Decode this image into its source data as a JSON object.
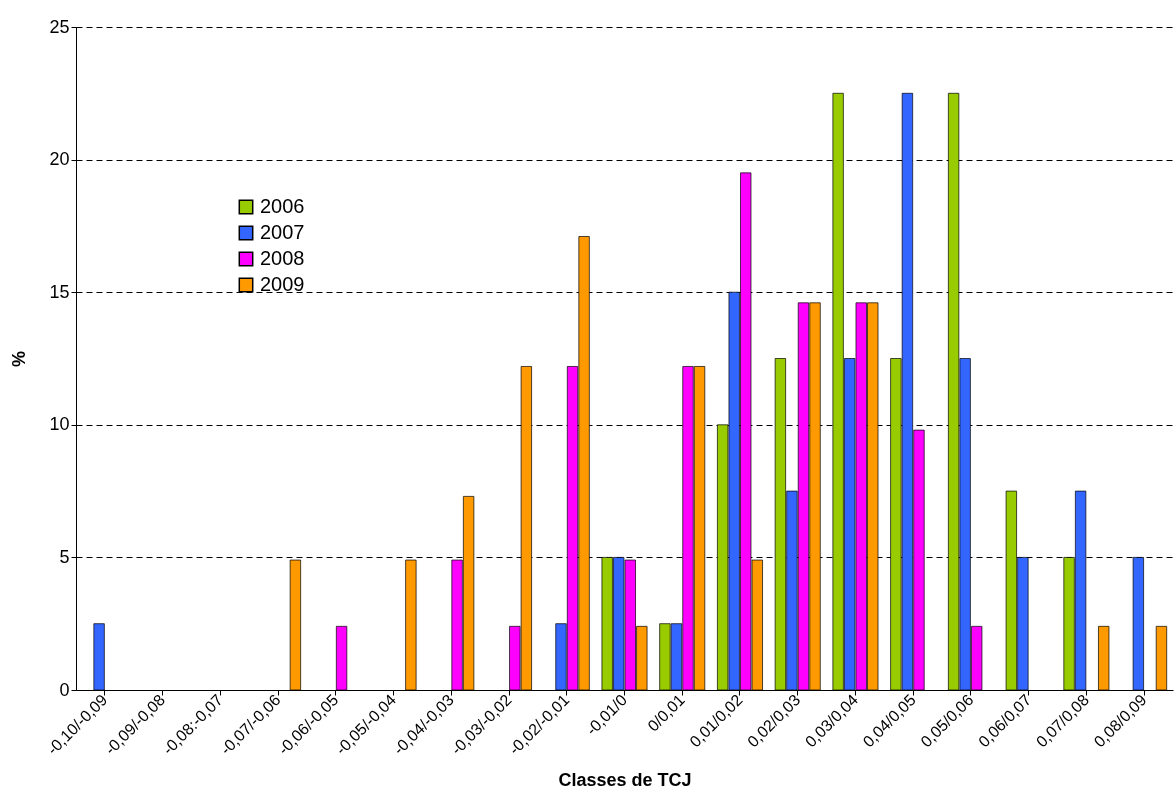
{
  "chart_data": {
    "type": "bar",
    "xlabel": "Classes de TCJ",
    "ylabel": "%",
    "categories": [
      "-0,10/-0,09",
      "-0,09/-0,08",
      "-0,08:-0,07",
      "-0,07/-0,06",
      "-0,06/-0,05",
      "-0,05/-0,04",
      "-0,04/-0,03",
      "-0,03/-0,02",
      "-0,02/-0,01",
      "-0,01/0",
      "0/0,01",
      "0,01/0,02",
      "0,02/0,03",
      "0,03/0,04",
      "0,04/0,05",
      "0,05/0,06",
      "0,06/0,07",
      "0,07/0,08",
      "0,08/0,09"
    ],
    "series": [
      {
        "name": "2006",
        "color": "#99cc00",
        "values": [
          null,
          null,
          null,
          null,
          null,
          null,
          null,
          null,
          null,
          5,
          2.5,
          10,
          12.5,
          22.5,
          12.5,
          22.5,
          7.5,
          5,
          null
        ]
      },
      {
        "name": "2007",
        "color": "#3366ff",
        "values": [
          2.5,
          null,
          null,
          null,
          null,
          null,
          null,
          null,
          2.5,
          5,
          2.5,
          15,
          7.5,
          12.5,
          22.5,
          12.5,
          5,
          7.5,
          5
        ]
      },
      {
        "name": "2008",
        "color": "#ff00ff",
        "values": [
          null,
          null,
          null,
          null,
          2.4,
          null,
          4.9,
          2.4,
          12.2,
          4.9,
          12.2,
          19.5,
          14.6,
          14.6,
          9.8,
          2.4,
          null,
          null,
          null
        ]
      },
      {
        "name": "2009",
        "color": "#ff9900",
        "values": [
          null,
          null,
          null,
          4.9,
          null,
          4.9,
          7.3,
          12.2,
          17.1,
          2.4,
          12.2,
          4.9,
          14.6,
          14.6,
          null,
          null,
          null,
          2.4,
          2.4
        ]
      }
    ],
    "ylim": [
      0,
      25
    ],
    "yticks": [
      0,
      5,
      10,
      15,
      20,
      25
    ],
    "grid": "y",
    "legend": "top left"
  }
}
